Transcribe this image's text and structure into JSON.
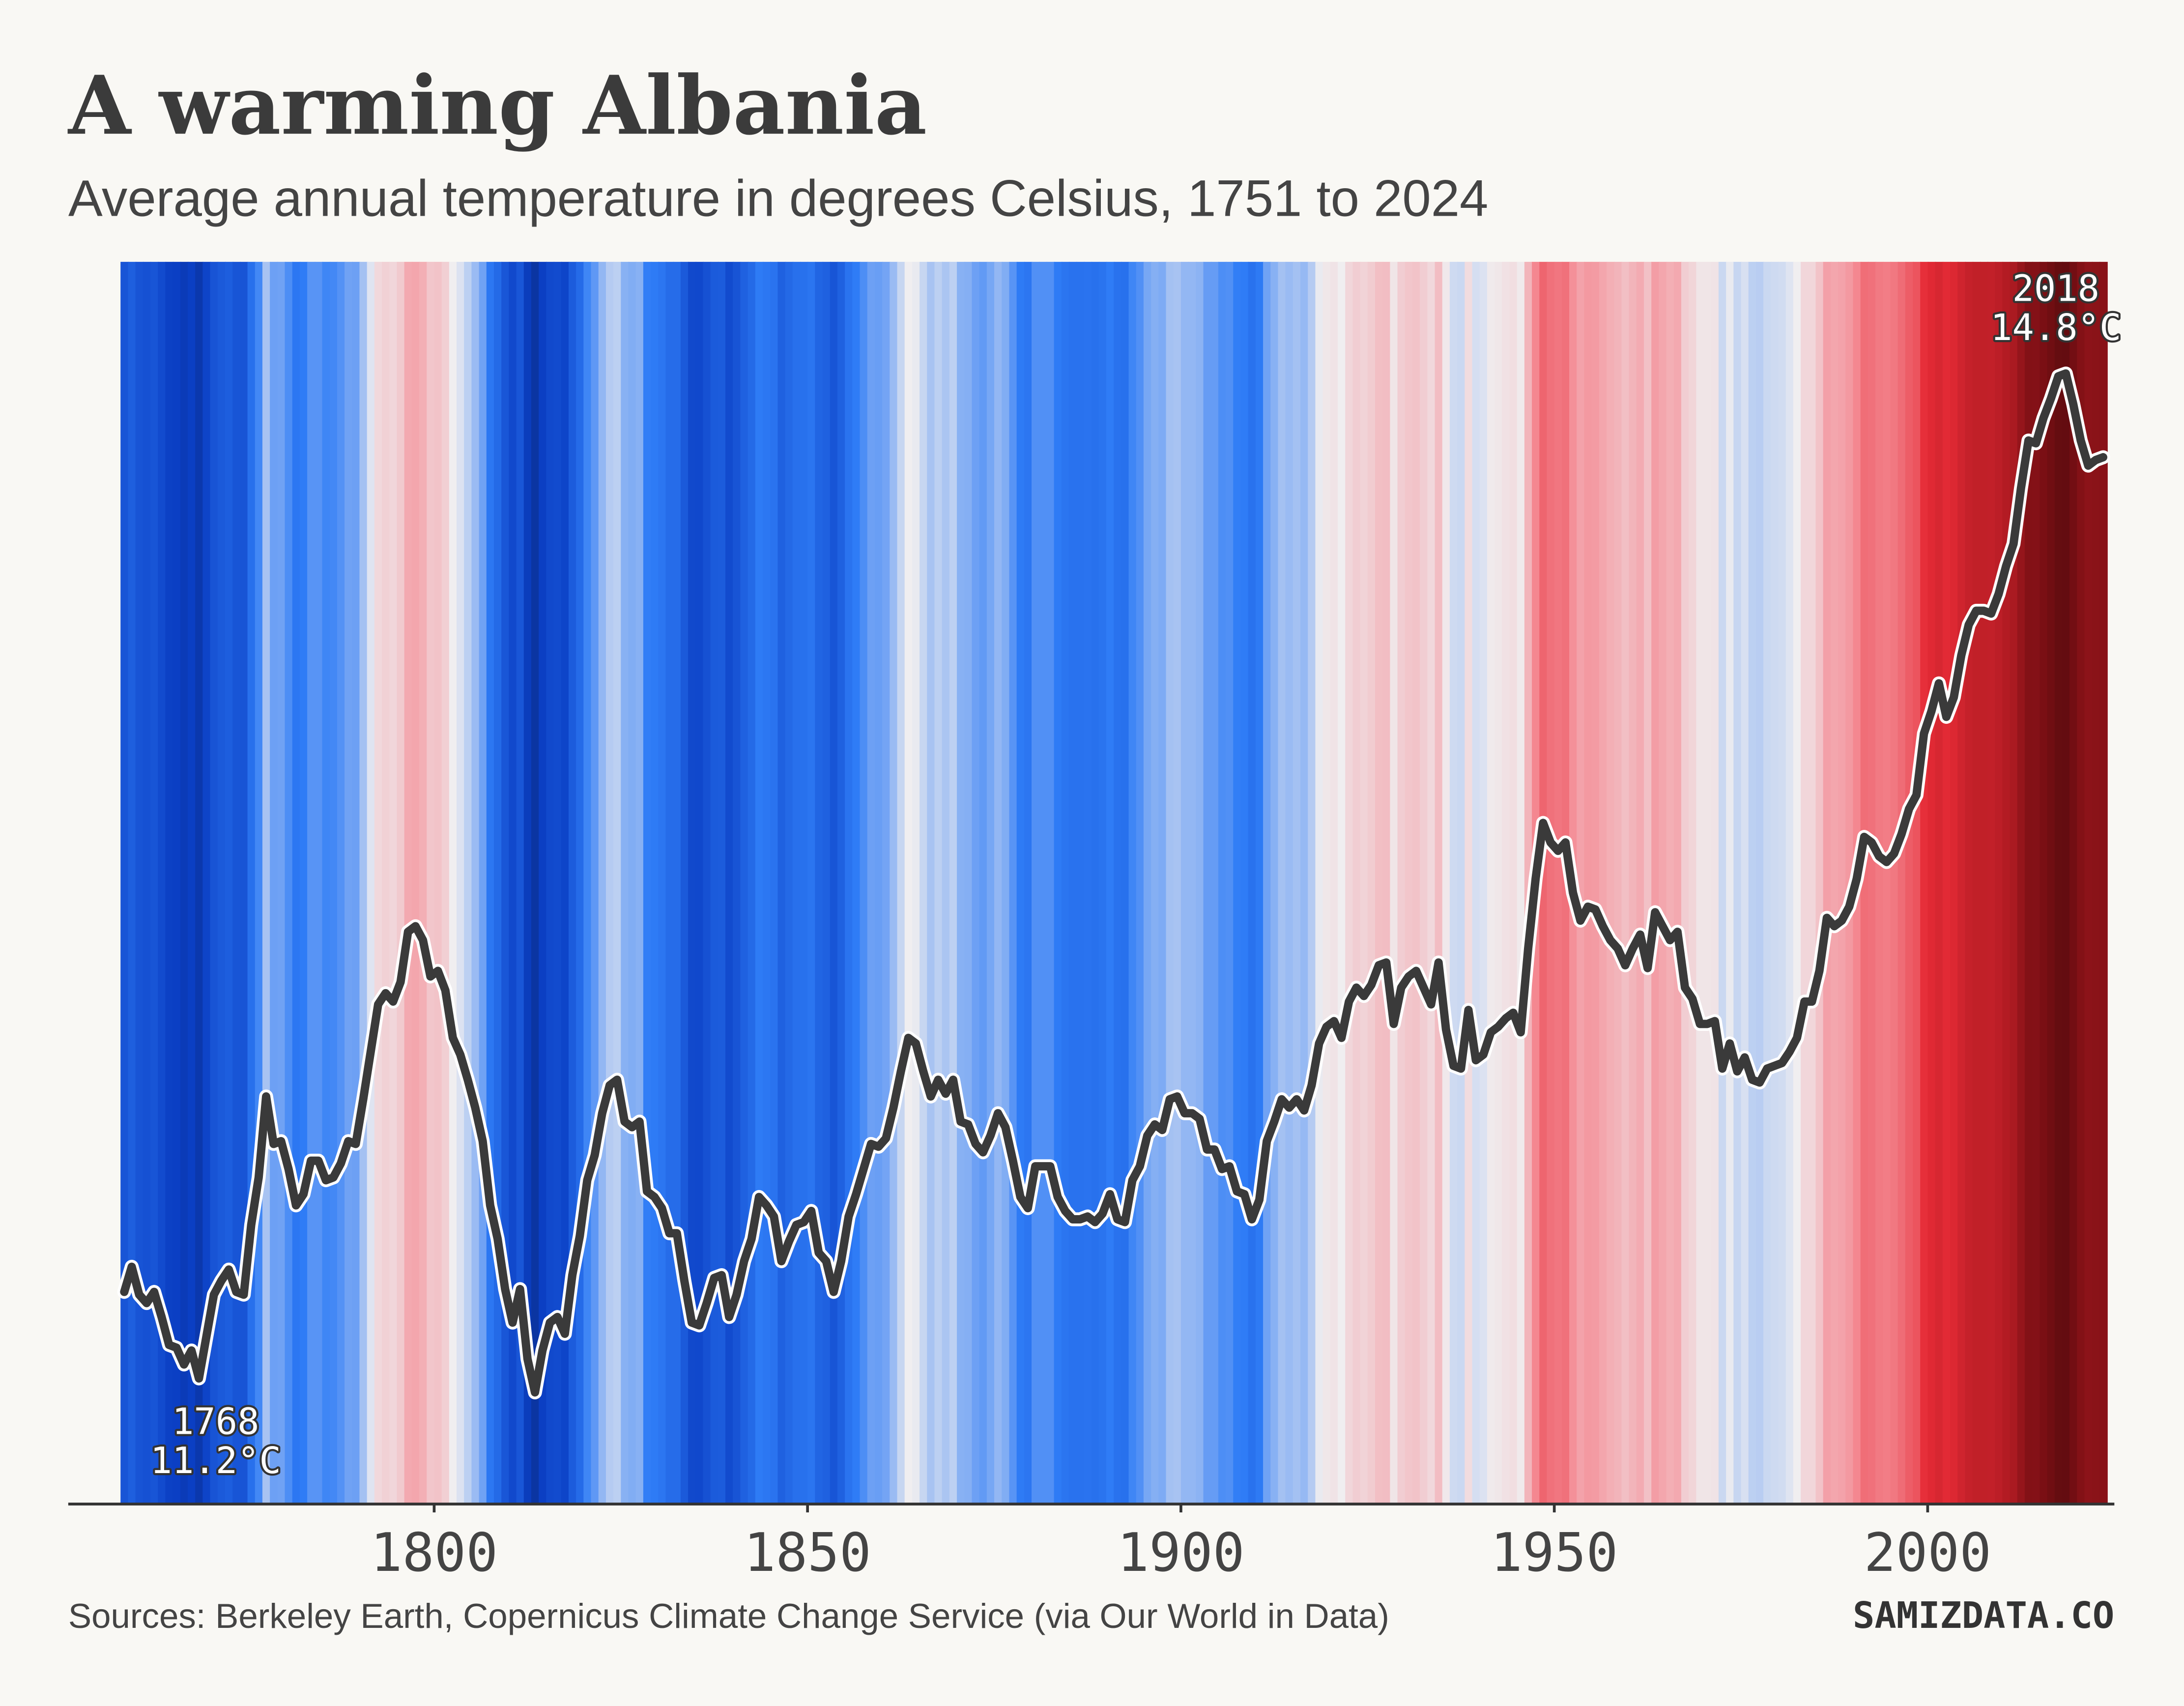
{
  "chart_data": {
    "type": "line",
    "title": "A warming Albania",
    "subtitle": "Average annual temperature in degrees Celsius, 1751 to 2024",
    "source": "Sources: Berkeley Earth, Copernicus Climate Change Service (via Our World in Data)",
    "logo": "SAMIZDATA.CO",
    "x": [
      1758,
      1759,
      1760,
      1761,
      1762,
      1763,
      1764,
      1765,
      1766,
      1767,
      1768,
      1769,
      1770,
      1771,
      1772,
      1773,
      1774,
      1775,
      1776,
      1777,
      1778,
      1779,
      1780,
      1781,
      1782,
      1783,
      1784,
      1785,
      1786,
      1787,
      1788,
      1789,
      1790,
      1791,
      1792,
      1793,
      1794,
      1795,
      1796,
      1797,
      1798,
      1799,
      1800,
      1801,
      1802,
      1803,
      1804,
      1805,
      1806,
      1807,
      1808,
      1809,
      1810,
      1811,
      1812,
      1813,
      1814,
      1815,
      1816,
      1817,
      1818,
      1819,
      1820,
      1821,
      1822,
      1823,
      1824,
      1825,
      1826,
      1827,
      1828,
      1829,
      1830,
      1831,
      1832,
      1833,
      1834,
      1835,
      1836,
      1837,
      1838,
      1839,
      1840,
      1841,
      1842,
      1843,
      1844,
      1845,
      1846,
      1847,
      1848,
      1849,
      1850,
      1851,
      1852,
      1853,
      1854,
      1855,
      1856,
      1857,
      1858,
      1859,
      1860,
      1861,
      1862,
      1863,
      1864,
      1865,
      1866,
      1867,
      1868,
      1869,
      1870,
      1871,
      1872,
      1873,
      1874,
      1875,
      1876,
      1877,
      1878,
      1879,
      1880,
      1881,
      1882,
      1883,
      1884,
      1885,
      1886,
      1887,
      1888,
      1889,
      1890,
      1891,
      1892,
      1893,
      1894,
      1895,
      1896,
      1897,
      1898,
      1899,
      1900,
      1901,
      1902,
      1903,
      1904,
      1905,
      1906,
      1907,
      1908,
      1909,
      1910,
      1911,
      1912,
      1913,
      1914,
      1915,
      1916,
      1917,
      1918,
      1919,
      1920,
      1921,
      1922,
      1923,
      1924,
      1925,
      1926,
      1927,
      1928,
      1929,
      1930,
      1931,
      1932,
      1933,
      1934,
      1935,
      1936,
      1937,
      1938,
      1939,
      1940,
      1941,
      1942,
      1943,
      1944,
      1945,
      1946,
      1947,
      1948,
      1949,
      1950,
      1951,
      1952,
      1953,
      1954,
      1955,
      1956,
      1957,
      1958,
      1959,
      1960,
      1961,
      1962,
      1963,
      1964,
      1965,
      1966,
      1967,
      1968,
      1969,
      1970,
      1971,
      1972,
      1973,
      1974,
      1975,
      1976,
      1977,
      1978,
      1979,
      1980,
      1981,
      1982,
      1983,
      1984,
      1985,
      1986,
      1987,
      1988,
      1989,
      1990,
      1991,
      1992,
      1993,
      1994,
      1995,
      1996,
      1997,
      1998,
      1999,
      2000,
      2001,
      2002,
      2003,
      2004,
      2005,
      2006,
      2007,
      2008,
      2009,
      2010,
      2011,
      2012,
      2013,
      2014,
      2015,
      2016,
      2017,
      2018,
      2019,
      2020,
      2021,
      2022,
      2023
    ],
    "values": [
      11.51,
      11.6,
      11.5,
      11.47,
      11.51,
      11.42,
      11.32,
      11.31,
      11.25,
      11.3,
      11.2,
      11.35,
      11.5,
      11.55,
      11.59,
      11.51,
      11.5,
      11.75,
      11.92,
      12.21,
      12.04,
      12.05,
      11.95,
      11.82,
      11.86,
      11.98,
      11.98,
      11.91,
      11.92,
      11.97,
      12.05,
      12.04,
      12.2,
      12.37,
      12.54,
      12.58,
      12.55,
      12.62,
      12.8,
      12.82,
      12.77,
      12.64,
      12.66,
      12.59,
      12.42,
      12.36,
      12.27,
      12.17,
      12.05,
      11.82,
      11.7,
      11.52,
      11.4,
      11.52,
      11.27,
      11.15,
      11.3,
      11.4,
      11.42,
      11.36,
      11.57,
      11.71,
      11.91,
      12.0,
      12.15,
      12.25,
      12.27,
      12.12,
      12.1,
      12.12,
      11.87,
      11.85,
      11.81,
      11.72,
      11.72,
      11.55,
      11.4,
      11.39,
      11.47,
      11.56,
      11.57,
      11.42,
      11.5,
      11.62,
      11.7,
      11.85,
      11.82,
      11.78,
      11.62,
      11.69,
      11.75,
      11.76,
      11.8,
      11.65,
      11.62,
      11.51,
      11.62,
      11.78,
      11.86,
      11.95,
      12.04,
      12.03,
      12.06,
      12.17,
      12.3,
      12.42,
      12.4,
      12.3,
      12.21,
      12.27,
      12.22,
      12.27,
      12.12,
      12.11,
      12.04,
      12.01,
      12.07,
      12.15,
      12.1,
      11.98,
      11.85,
      11.81,
      11.96,
      11.96,
      11.96,
      11.85,
      11.8,
      11.77,
      11.77,
      11.78,
      11.76,
      11.79,
      11.86,
      11.77,
      11.76,
      11.91,
      11.96,
      12.07,
      12.11,
      12.09,
      12.2,
      12.21,
      12.15,
      12.15,
      12.13,
      12.02,
      12.02,
      11.95,
      11.96,
      11.87,
      11.86,
      11.77,
      11.84,
      12.05,
      12.12,
      12.2,
      12.17,
      12.2,
      12.16,
      12.25,
      12.4,
      12.46,
      12.48,
      12.42,
      12.55,
      12.6,
      12.57,
      12.61,
      12.68,
      12.69,
      12.47,
      12.6,
      12.64,
      12.66,
      12.6,
      12.54,
      12.69,
      12.45,
      12.32,
      12.31,
      12.52,
      12.34,
      12.36,
      12.44,
      12.46,
      12.49,
      12.51,
      12.44,
      12.74,
      12.99,
      13.19,
      13.12,
      13.09,
      13.12,
      12.94,
      12.84,
      12.89,
      12.88,
      12.82,
      12.77,
      12.74,
      12.68,
      12.74,
      12.79,
      12.67,
      12.87,
      12.82,
      12.77,
      12.8,
      12.6,
      12.56,
      12.47,
      12.47,
      12.48,
      12.31,
      12.4,
      12.3,
      12.35,
      12.27,
      12.26,
      12.31,
      12.32,
      12.33,
      12.37,
      12.42,
      12.55,
      12.55,
      12.66,
      12.85,
      12.82,
      12.84,
      12.89,
      12.99,
      13.14,
      13.12,
      13.07,
      13.05,
      13.08,
      13.15,
      13.24,
      13.29,
      13.51,
      13.59,
      13.69,
      13.57,
      13.64,
      13.79,
      13.9,
      13.95,
      13.95,
      13.94,
      14.01,
      14.11,
      14.19,
      14.39,
      14.56,
      14.55,
      14.64,
      14.71,
      14.79,
      14.8,
      14.69,
      14.56,
      14.47,
      14.49,
      14.5
    ],
    "color": "#3a3a3a",
    "halo_color": "#ffffff",
    "stripe_colors": [
      "#0a1a4a",
      "#0b3fc4",
      "#2f7cf6",
      "#f0eef0",
      "#f48a93",
      "#e52b36",
      "#b51c24",
      "#7a0f14",
      "#2a0606"
    ],
    "xlim": [
      1751,
      2025
    ],
    "xticks": [
      1800,
      1850,
      1900,
      1950,
      2000
    ],
    "ylim": [
      10.75,
      15.2
    ],
    "annotations": [
      {
        "x": 1768,
        "y": 11.2,
        "text": [
          "1768",
          "11.2°C"
        ],
        "position": "below"
      },
      {
        "x": 2018,
        "y": 14.8,
        "text": [
          "2018",
          "14.8°C"
        ],
        "position": "above"
      }
    ]
  }
}
